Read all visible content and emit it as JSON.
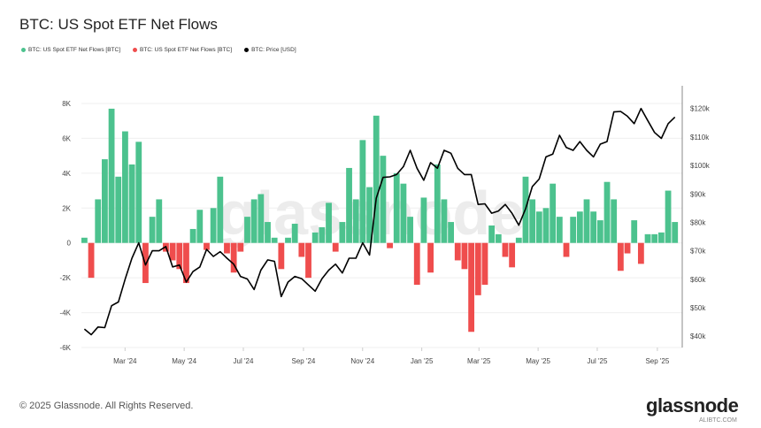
{
  "title": "BTC: US Spot ETF Net Flows",
  "legend": [
    {
      "label": "BTC: US Spot ETF Net Flows [BTC]",
      "color": "#4cc28e"
    },
    {
      "label": "BTC: US Spot ETF Net Flows [BTC]",
      "color": "#ef4d4d"
    },
    {
      "label": "BTC: Price [USD]",
      "color": "#000000"
    }
  ],
  "footer": "© 2025 Glassnode. All Rights Reserved.",
  "logo": "glassnode",
  "watermark": "ALIBTC.COM",
  "chart_data": {
    "type": "bar+line",
    "title": "BTC: US Spot ETF Net Flows",
    "grid": true,
    "legend_position": "top-left",
    "x_range": [
      "2024-01-16",
      "2025-09-23"
    ],
    "x_ticks": [
      {
        "date": "2024-03-01",
        "label": "Mar '24"
      },
      {
        "date": "2024-05-01",
        "label": "May '24"
      },
      {
        "date": "2024-07-01",
        "label": "Jul '24"
      },
      {
        "date": "2024-09-01",
        "label": "Sep '24"
      },
      {
        "date": "2024-11-01",
        "label": "Nov '24"
      },
      {
        "date": "2025-01-01",
        "label": "Jan '25"
      },
      {
        "date": "2025-03-01",
        "label": "Mar '25"
      },
      {
        "date": "2025-05-01",
        "label": "May '25"
      },
      {
        "date": "2025-07-01",
        "label": "Jul '25"
      },
      {
        "date": "2025-09-01",
        "label": "Sep '25"
      }
    ],
    "y_left": {
      "ylim": [
        -6000,
        8000
      ],
      "ticks": [
        -6000,
        -4000,
        -2000,
        0,
        2000,
        4000,
        6000,
        8000
      ],
      "tick_labels": [
        "-6K",
        "-4K",
        "-2K",
        "0",
        "2K",
        "4K",
        "6K",
        "8K"
      ]
    },
    "y_right": {
      "ylim": [
        36000,
        128000
      ],
      "ticks": [
        40000,
        50000,
        60000,
        70000,
        80000,
        90000,
        100000,
        110000,
        120000
      ],
      "tick_labels": [
        "$40k",
        "$50k",
        "$60k",
        "$70k",
        "$80k",
        "$90k",
        "$100k",
        "$110k",
        "$120k"
      ]
    },
    "dates": [
      "2024-01-16",
      "2024-01-23",
      "2024-01-30",
      "2024-02-06",
      "2024-02-13",
      "2024-02-20",
      "2024-02-27",
      "2024-03-05",
      "2024-03-12",
      "2024-03-19",
      "2024-03-26",
      "2024-04-02",
      "2024-04-09",
      "2024-04-16",
      "2024-04-23",
      "2024-04-30",
      "2024-05-07",
      "2024-05-14",
      "2024-05-21",
      "2024-05-28",
      "2024-06-04",
      "2024-06-11",
      "2024-06-18",
      "2024-06-25",
      "2024-07-02",
      "2024-07-09",
      "2024-07-16",
      "2024-07-23",
      "2024-07-30",
      "2024-08-06",
      "2024-08-13",
      "2024-08-20",
      "2024-08-27",
      "2024-09-03",
      "2024-09-10",
      "2024-09-17",
      "2024-09-24",
      "2024-10-01",
      "2024-10-08",
      "2024-10-15",
      "2024-10-22",
      "2024-10-29",
      "2024-11-05",
      "2024-11-12",
      "2024-11-19",
      "2024-11-26",
      "2024-12-03",
      "2024-12-10",
      "2024-12-17",
      "2024-12-24",
      "2024-12-31",
      "2025-01-07",
      "2025-01-14",
      "2025-01-21",
      "2025-01-28",
      "2025-02-04",
      "2025-02-11",
      "2025-02-18",
      "2025-02-25",
      "2025-03-04",
      "2025-03-11",
      "2025-03-18",
      "2025-03-25",
      "2025-04-01",
      "2025-04-08",
      "2025-04-15",
      "2025-04-22",
      "2025-04-29",
      "2025-05-06",
      "2025-05-13",
      "2025-05-20",
      "2025-05-27",
      "2025-06-03",
      "2025-06-10",
      "2025-06-17",
      "2025-06-24",
      "2025-07-01",
      "2025-07-08",
      "2025-07-15",
      "2025-07-22",
      "2025-07-29",
      "2025-08-05",
      "2025-08-12",
      "2025-08-19",
      "2025-08-26",
      "2025-09-02",
      "2025-09-09",
      "2025-09-16"
    ],
    "series": [
      {
        "name": "BTC: US Spot ETF Net Flows [BTC]",
        "type": "bar",
        "axis": "left",
        "values": [
          300,
          -2000,
          2500,
          4800,
          7700,
          3800,
          6400,
          4500,
          5800,
          -2300,
          1500,
          2500,
          -500,
          -1000,
          -1500,
          -2300,
          800,
          1900,
          -400,
          2000,
          3800,
          -600,
          -1700,
          -500,
          1500,
          2500,
          2800,
          1200,
          300,
          -1500,
          300,
          1100,
          -800,
          -2000,
          600,
          900,
          2300,
          -500,
          1200,
          4300,
          2500,
          5900,
          3200,
          7300,
          5000,
          -300,
          4000,
          3400,
          1500,
          -2400,
          2600,
          -1700,
          4500,
          2500,
          1200,
          -1000,
          -1500,
          -5100,
          -3000,
          -2400,
          1000,
          500,
          -800,
          -1400,
          300,
          3800,
          2500,
          1800,
          2000,
          3400,
          1500,
          -800,
          1500,
          1800,
          2500,
          1800,
          1300,
          3500,
          2500,
          -1600,
          -600,
          1300,
          -1200,
          500,
          500,
          600,
          3000,
          1200
        ]
      },
      {
        "name": "BTC: Price [USD]",
        "type": "line",
        "axis": "right",
        "values": [
          42500,
          40500,
          43200,
          43000,
          50700,
          52000,
          60000,
          67400,
          72800,
          65000,
          70000,
          70000,
          71500,
          64300,
          65000,
          59000,
          62700,
          64300,
          70500,
          68000,
          69700,
          67400,
          65300,
          61000,
          60100,
          56400,
          63200,
          66800,
          66300,
          53900,
          59000,
          61000,
          60200,
          58000,
          55800,
          60200,
          63200,
          65300,
          62200,
          67400,
          67400,
          72800,
          68500,
          88500,
          95800,
          96000,
          96800,
          99600,
          105300,
          99000,
          94800,
          101000,
          99000,
          105300,
          104300,
          99000,
          96800,
          96800,
          86300,
          86500,
          83200,
          84000,
          86300,
          83200,
          79000,
          84800,
          92600,
          95200,
          103000,
          104000,
          110600,
          106300,
          105300,
          108400,
          105300,
          103000,
          107500,
          108400,
          118800,
          119000,
          117300,
          114700,
          120000,
          115800,
          111600,
          109500,
          114700,
          117000
        ]
      }
    ]
  }
}
